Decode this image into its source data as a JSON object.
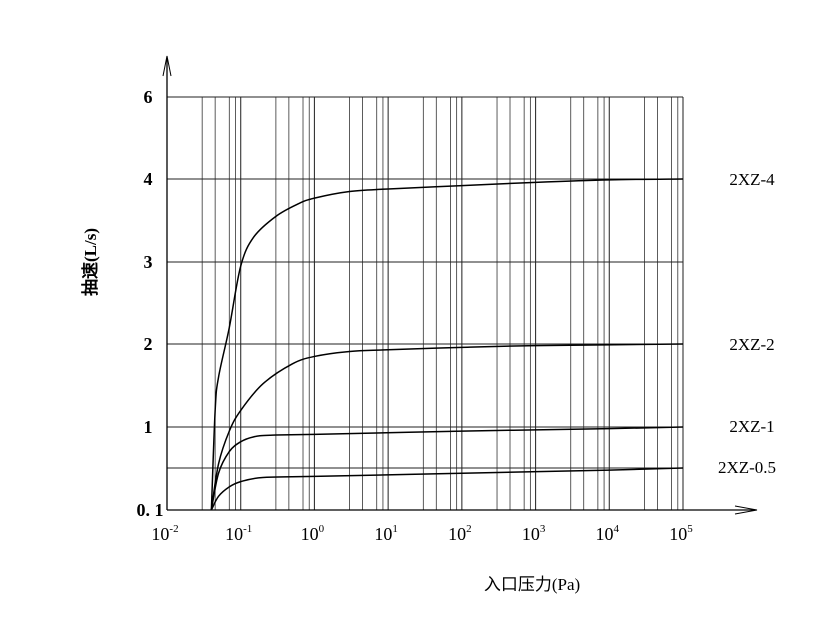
{
  "chart_data": {
    "type": "line",
    "title": "",
    "xlabel": "入口压力(Pa)",
    "ylabel": "抽速(L/s)",
    "x_scale": "log",
    "xlim": [
      0.01,
      100000
    ],
    "ylim": [
      0.1,
      6
    ],
    "grid": true,
    "x_ticks": [
      {
        "value": 0.01,
        "base": "10",
        "exp": "-2"
      },
      {
        "value": 0.1,
        "base": "10",
        "exp": "-1"
      },
      {
        "value": 1,
        "base": "10",
        "exp": "0"
      },
      {
        "value": 10,
        "base": "10",
        "exp": "1"
      },
      {
        "value": 100,
        "base": "10",
        "exp": "2"
      },
      {
        "value": 1000,
        "base": "10",
        "exp": "3"
      },
      {
        "value": 10000,
        "base": "10",
        "exp": "4"
      },
      {
        "value": 100000,
        "base": "10",
        "exp": "5"
      }
    ],
    "y_ticks": [
      {
        "value": 0.1,
        "label": "0. 1"
      },
      {
        "value": 1,
        "label": "1"
      },
      {
        "value": 2,
        "label": "2"
      },
      {
        "value": 3,
        "label": "3"
      },
      {
        "value": 4,
        "label": "4"
      },
      {
        "value": 6,
        "label": "6"
      }
    ],
    "y_gridlines": [
      0.5,
      1,
      2,
      3,
      4,
      6
    ],
    "legend_placement": "right (inline labels at curve ends)",
    "series": [
      {
        "name": "2XZ-4",
        "points": [
          [
            0.04,
            0.1
          ],
          [
            0.045,
            1.2
          ],
          [
            0.05,
            1.6
          ],
          [
            0.07,
            2.2
          ],
          [
            0.1,
            2.95
          ],
          [
            0.15,
            3.3
          ],
          [
            0.3,
            3.55
          ],
          [
            0.6,
            3.7
          ],
          [
            1,
            3.77
          ],
          [
            3,
            3.85
          ],
          [
            10,
            3.88
          ],
          [
            100,
            3.92
          ],
          [
            1000,
            3.96
          ],
          [
            10000,
            3.99
          ],
          [
            100000,
            4.0
          ]
        ]
      },
      {
        "name": "2XZ-2",
        "points": [
          [
            0.04,
            0.1
          ],
          [
            0.05,
            0.55
          ],
          [
            0.07,
            0.95
          ],
          [
            0.1,
            1.2
          ],
          [
            0.2,
            1.52
          ],
          [
            0.5,
            1.76
          ],
          [
            1,
            1.85
          ],
          [
            3,
            1.91
          ],
          [
            10,
            1.93
          ],
          [
            100,
            1.96
          ],
          [
            1000,
            1.98
          ],
          [
            100000,
            2.0
          ]
        ]
      },
      {
        "name": "2XZ-1",
        "points": [
          [
            0.04,
            0.1
          ],
          [
            0.05,
            0.45
          ],
          [
            0.07,
            0.7
          ],
          [
            0.1,
            0.82
          ],
          [
            0.15,
            0.88
          ],
          [
            0.25,
            0.9
          ],
          [
            1,
            0.91
          ],
          [
            100,
            0.95
          ],
          [
            10000,
            0.98
          ],
          [
            100000,
            1.0
          ]
        ]
      },
      {
        "name": "2XZ-0.5",
        "points": [
          [
            0.04,
            0.1
          ],
          [
            0.05,
            0.23
          ],
          [
            0.07,
            0.32
          ],
          [
            0.1,
            0.37
          ],
          [
            0.2,
            0.41
          ],
          [
            1,
            0.42
          ],
          [
            100,
            0.45
          ],
          [
            10000,
            0.48
          ],
          [
            100000,
            0.5
          ]
        ]
      }
    ]
  }
}
